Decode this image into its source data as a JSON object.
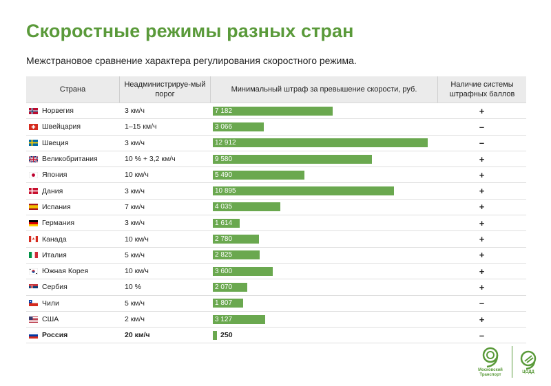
{
  "title": "Скоростные режимы разных стран",
  "subtitle": "Межстрановое сравнение характера регулирования скоростного режима.",
  "headers": {
    "country": "Страна",
    "threshold": "Неадминистрируе-мый порог",
    "fine": "Минимальный штраф за превышение скорости, руб.",
    "points": "Наличие системы штрафных баллов"
  },
  "colors": {
    "bar": "#6aa84f",
    "title": "#5a9a3a"
  },
  "chart_data": {
    "type": "bar",
    "categories": [
      "Норвегия",
      "Швейцария",
      "Швеция",
      "Великобритания",
      "Япония",
      "Дания",
      "Испания",
      "Германия",
      "Канада",
      "Италия",
      "Южная Корея",
      "Сербия",
      "Чили",
      "США",
      "Россия"
    ],
    "values": [
      7182,
      3066,
      12912,
      9580,
      5490,
      10895,
      4035,
      1614,
      2780,
      2825,
      3600,
      2070,
      1807,
      3127,
      250
    ],
    "value_labels": [
      "7 182",
      "3 066",
      "12 912",
      "9 580",
      "5 490",
      "10 895",
      "4 035",
      "1 614",
      "2 780",
      "2 825",
      "3 600",
      "2 070",
      "1 807",
      "3 127",
      "250"
    ],
    "xlim": [
      0,
      12912
    ]
  },
  "rows": [
    {
      "country": "Норвегия",
      "flag": "norway-flag",
      "threshold": "3 км/ч",
      "points": "+"
    },
    {
      "country": "Швейцария",
      "flag": "switzerland-flag",
      "threshold": "1–15 км/ч",
      "points": "–"
    },
    {
      "country": "Швеция",
      "flag": "sweden-flag",
      "threshold": "3 км/ч",
      "points": "–"
    },
    {
      "country": "Великобритания",
      "flag": "uk-flag",
      "threshold": "10 % + 3,2 км/ч",
      "points": "+"
    },
    {
      "country": "Япония",
      "flag": "japan-flag",
      "threshold": "10 км/ч",
      "points": "+"
    },
    {
      "country": "Дания",
      "flag": "denmark-flag",
      "threshold": "3 км/ч",
      "points": "+"
    },
    {
      "country": "Испания",
      "flag": "spain-flag",
      "threshold": "7 км/ч",
      "points": "+"
    },
    {
      "country": "Германия",
      "flag": "germany-flag",
      "threshold": "3 км/ч",
      "points": "+"
    },
    {
      "country": "Канада",
      "flag": "canada-flag",
      "threshold": "10 км/ч",
      "points": "+"
    },
    {
      "country": "Италия",
      "flag": "italy-flag",
      "threshold": "5 км/ч",
      "points": "+"
    },
    {
      "country": "Южная Корея",
      "flag": "south-korea-flag",
      "threshold": "10 км/ч",
      "points": "+"
    },
    {
      "country": "Сербия",
      "flag": "serbia-flag",
      "threshold": "10 %",
      "points": "+"
    },
    {
      "country": "Чили",
      "flag": "chile-flag",
      "threshold": "5 км/ч",
      "points": "–"
    },
    {
      "country": "США",
      "flag": "usa-flag",
      "threshold": "2 км/ч",
      "points": "+"
    },
    {
      "country": "Россия",
      "flag": "russia-flag",
      "threshold": "20 км/ч",
      "points": "–",
      "highlight": true
    }
  ],
  "logos": {
    "transport": "Московский Транспорт",
    "codd": "ЦОДД"
  }
}
